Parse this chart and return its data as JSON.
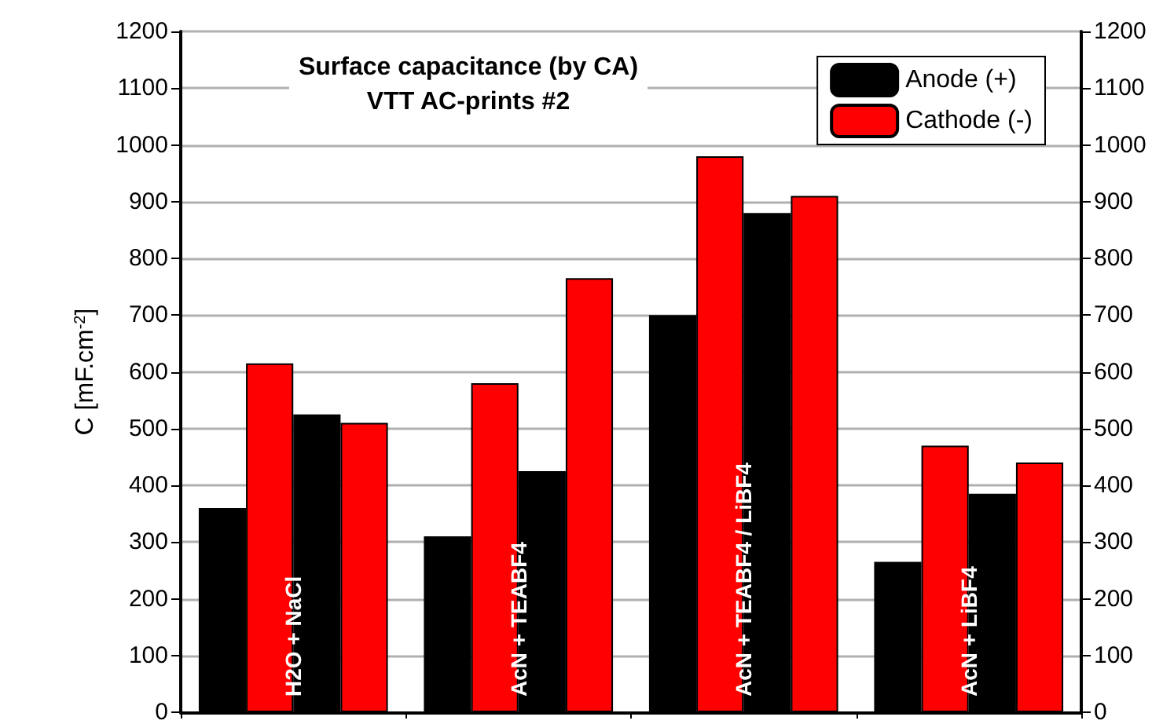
{
  "chart_data": {
    "type": "bar",
    "title": "Surface capacitance (by CA)\nVTT AC-prints #2",
    "ylabel": "C [mF.cm$^{-2}$]",
    "categories": [
      "H2O + NaCl",
      "AcN + TEABF4",
      "AcN + TEABF4 / LiBF4",
      "AcN + LiBF4"
    ],
    "series": [
      {
        "name": "Anode (+)",
        "color": "#000000",
        "values": [
          360,
          310,
          700,
          265
        ]
      },
      {
        "name": "Cathode (-)",
        "color": "#ff0000",
        "values": [
          615,
          580,
          980,
          470
        ]
      },
      {
        "color": "#000000",
        "values": [
          525,
          425,
          880,
          385
        ]
      },
      {
        "color": "#ff0000",
        "values": [
          510,
          765,
          910,
          440
        ]
      }
    ],
    "ylim": [
      0,
      1200
    ],
    "yticks": [
      0,
      100,
      200,
      300,
      400,
      500,
      600,
      700,
      800,
      900,
      1000,
      1100,
      1200
    ],
    "y2lim": [
      0,
      1200
    ],
    "y2ticks": [
      0,
      100,
      200,
      300,
      400,
      500,
      600,
      700,
      800,
      900,
      1000,
      1100,
      1200
    ],
    "grid": "y",
    "legend": "top right"
  }
}
